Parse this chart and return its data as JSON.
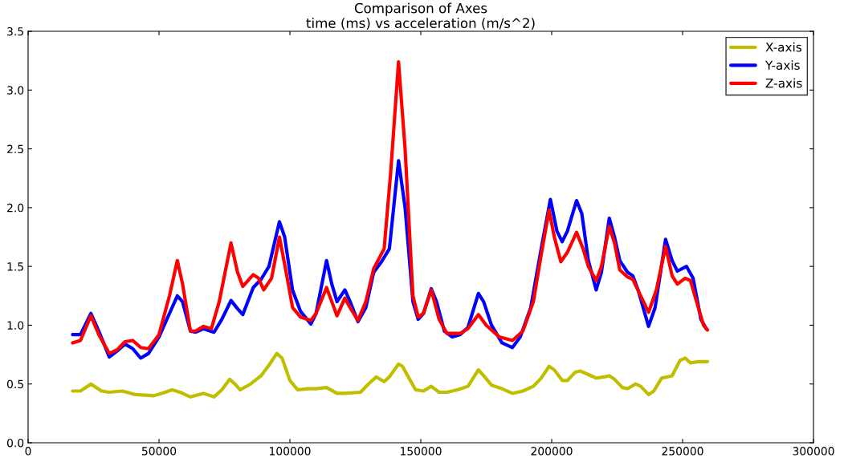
{
  "chart_data": {
    "type": "line",
    "title": "Comparison of Axes\ntime (ms) vs acceleration (m/s^2)",
    "xlim": [
      0,
      300000
    ],
    "xticks": [
      0,
      50000,
      100000,
      150000,
      200000,
      250000,
      300000
    ],
    "ylim": [
      0,
      3.5
    ],
    "yticks": [
      {
        "value": 0,
        "label": "0.0"
      },
      0.5,
      {
        "value": 1,
        "label": "1.0"
      },
      1.5,
      {
        "value": 2,
        "label": "2.0"
      },
      2.5,
      {
        "value": 3,
        "label": "3.0"
      },
      3.5
    ],
    "grid": false,
    "legend": "top right",
    "marker": "none",
    "line_style": "solid",
    "series": [
      {
        "name": "X-axis",
        "color": "#bfbf00",
        "x": [
          17000,
          20000,
          24000,
          28000,
          31000,
          36000,
          41000,
          48000,
          51000,
          55000,
          58000,
          62000,
          67000,
          71000,
          74000,
          77000,
          79000,
          81000,
          85000,
          89000,
          92000,
          95000,
          97000,
          100000,
          103000,
          107000,
          110000,
          114000,
          118000,
          121000,
          127000,
          130000,
          133000,
          136000,
          138000,
          141500,
          143000,
          148000,
          151000,
          154000,
          157000,
          160000,
          164000,
          168000,
          172000,
          174000,
          177000,
          181000,
          185000,
          189000,
          193000,
          196000,
          199000,
          201000,
          204000,
          206000,
          209000,
          211000,
          214000,
          217000,
          220000,
          222000,
          224000,
          227000,
          229000,
          232000,
          234000,
          237000,
          239000,
          242000,
          244000,
          246000,
          249000,
          251000,
          253000,
          256000,
          259500
        ],
        "values": [
          0.44,
          0.44,
          0.5,
          0.44,
          0.43,
          0.44,
          0.41,
          0.4,
          0.42,
          0.45,
          0.43,
          0.39,
          0.42,
          0.39,
          0.45,
          0.54,
          0.5,
          0.45,
          0.5,
          0.57,
          0.66,
          0.76,
          0.72,
          0.53,
          0.45,
          0.46,
          0.46,
          0.47,
          0.42,
          0.42,
          0.43,
          0.5,
          0.56,
          0.52,
          0.56,
          0.67,
          0.65,
          0.45,
          0.44,
          0.48,
          0.43,
          0.43,
          0.45,
          0.48,
          0.62,
          0.57,
          0.49,
          0.46,
          0.42,
          0.44,
          0.48,
          0.55,
          0.65,
          0.62,
          0.53,
          0.53,
          0.6,
          0.61,
          0.58,
          0.55,
          0.56,
          0.57,
          0.54,
          0.47,
          0.46,
          0.5,
          0.48,
          0.41,
          0.44,
          0.55,
          0.56,
          0.57,
          0.7,
          0.72,
          0.68,
          0.69,
          0.69
        ]
      },
      {
        "name": "Y-axis",
        "color": "#0000ff",
        "x": [
          17000,
          20000,
          24000,
          27000,
          31000,
          34000,
          37000,
          40000,
          43000,
          46000,
          50000,
          54000,
          57000,
          59000,
          62000,
          64000,
          67000,
          71000,
          74000,
          77500,
          80000,
          82000,
          86000,
          89000,
          92000,
          96000,
          98000,
          101000,
          104000,
          108000,
          110000,
          114000,
          116000,
          118000,
          121000,
          123000,
          126000,
          129000,
          132000,
          135000,
          138000,
          141500,
          144000,
          147000,
          149000,
          151000,
          154000,
          156000,
          159000,
          162000,
          165000,
          168000,
          172000,
          174000,
          177000,
          181000,
          185000,
          188000,
          192000,
          196000,
          199500,
          202000,
          204000,
          206000,
          209500,
          211500,
          214000,
          217000,
          219000,
          222000,
          224000,
          226000,
          229000,
          231000,
          233000,
          237000,
          239500,
          243500,
          246000,
          248000,
          251500,
          254000,
          257000,
          259000
        ],
        "values": [
          0.92,
          0.92,
          1.1,
          0.95,
          0.73,
          0.78,
          0.84,
          0.8,
          0.72,
          0.76,
          0.9,
          1.1,
          1.25,
          1.2,
          0.95,
          0.94,
          0.97,
          0.94,
          1.05,
          1.21,
          1.14,
          1.09,
          1.32,
          1.39,
          1.5,
          1.88,
          1.75,
          1.3,
          1.12,
          1.01,
          1.1,
          1.55,
          1.35,
          1.2,
          1.3,
          1.2,
          1.03,
          1.15,
          1.45,
          1.54,
          1.65,
          2.4,
          2.0,
          1.2,
          1.05,
          1.1,
          1.31,
          1.2,
          0.95,
          0.9,
          0.92,
          0.98,
          1.27,
          1.2,
          1.0,
          0.85,
          0.81,
          0.9,
          1.15,
          1.65,
          2.07,
          1.8,
          1.71,
          1.8,
          2.06,
          1.95,
          1.55,
          1.3,
          1.45,
          1.91,
          1.75,
          1.55,
          1.45,
          1.42,
          1.3,
          0.99,
          1.15,
          1.73,
          1.55,
          1.46,
          1.5,
          1.4,
          1.05,
          0.97
        ]
      },
      {
        "name": "Z-axis",
        "color": "#ff0000",
        "x": [
          17000,
          20000,
          24000,
          27000,
          31000,
          34000,
          37000,
          40000,
          43000,
          46000,
          50000,
          54000,
          57000,
          59000,
          62000,
          64000,
          67000,
          70000,
          73000,
          77500,
          80000,
          82000,
          86000,
          88000,
          90000,
          93000,
          96000,
          99000,
          101000,
          104000,
          108000,
          110000,
          114000,
          116000,
          118000,
          121000,
          123000,
          126000,
          129000,
          132000,
          136000,
          138500,
          141500,
          144000,
          147000,
          149000,
          151000,
          154000,
          157000,
          160000,
          165000,
          168000,
          172000,
          175000,
          180000,
          185000,
          189000,
          193000,
          196000,
          199000,
          201000,
          203500,
          206000,
          209500,
          212000,
          214000,
          217000,
          219000,
          222000,
          224000,
          226000,
          229000,
          231000,
          234000,
          237000,
          240000,
          243500,
          246000,
          248000,
          251000,
          253000,
          256000,
          258000,
          259500
        ],
        "values": [
          0.85,
          0.87,
          1.08,
          0.92,
          0.76,
          0.79,
          0.86,
          0.87,
          0.81,
          0.8,
          0.92,
          1.25,
          1.55,
          1.35,
          0.95,
          0.95,
          0.99,
          0.97,
          1.2,
          1.7,
          1.45,
          1.33,
          1.43,
          1.4,
          1.3,
          1.4,
          1.75,
          1.4,
          1.15,
          1.07,
          1.04,
          1.1,
          1.32,
          1.2,
          1.08,
          1.23,
          1.15,
          1.04,
          1.2,
          1.48,
          1.65,
          2.3,
          3.24,
          2.5,
          1.25,
          1.07,
          1.1,
          1.3,
          1.05,
          0.93,
          0.93,
          0.97,
          1.09,
          1.0,
          0.9,
          0.87,
          0.95,
          1.2,
          1.6,
          1.98,
          1.75,
          1.54,
          1.62,
          1.79,
          1.65,
          1.5,
          1.38,
          1.5,
          1.84,
          1.7,
          1.47,
          1.41,
          1.39,
          1.25,
          1.11,
          1.3,
          1.67,
          1.42,
          1.35,
          1.4,
          1.38,
          1.15,
          1.0,
          0.96
        ]
      }
    ]
  }
}
